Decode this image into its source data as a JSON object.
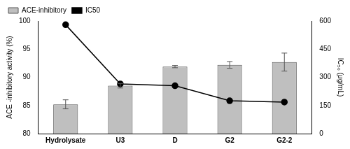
{
  "chart_data": {
    "type": "bar",
    "categories": [
      "Hydrolysate",
      "U3",
      "D",
      "G2",
      "G2-2"
    ],
    "series": [
      {
        "name": "ACE-inhibitory",
        "type": "bar",
        "color": "#bfbfbf",
        "values": [
          85.2,
          88.5,
          91.9,
          92.2,
          92.7
        ],
        "errors": [
          0.8,
          0.4,
          0.2,
          0.6,
          1.6
        ]
      },
      {
        "name": "IC50",
        "type": "line",
        "color": "#000000",
        "marker": "circle",
        "axis": "y2",
        "values": [
          580,
          265,
          255,
          175,
          168
        ]
      }
    ],
    "y_label": "ACE -inhibitory activity (%)",
    "y2_label": "IC₅₀ (μg/mL)",
    "ylim": [
      80,
      100
    ],
    "yticks": [
      80,
      85,
      90,
      95,
      100
    ],
    "y2lim": [
      0,
      600
    ],
    "y2ticks": [
      0,
      150,
      300,
      450,
      600
    ],
    "grid": false,
    "legend": "upper left"
  }
}
